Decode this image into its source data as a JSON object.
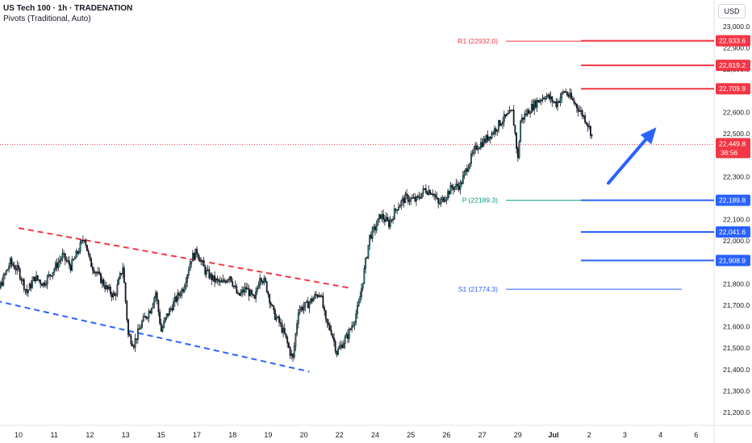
{
  "header": {
    "title": "US Tech 100 · 1h · TRADENATION",
    "subtitle": "Pivots (Traditional, Auto)"
  },
  "currency_label": "USD",
  "chart_data": {
    "type": "candlestick",
    "ylim": [
      21150,
      23100
    ],
    "y_ticks": [
      "23,000.0",
      "22,900.0",
      "22,800.0",
      "22,700.0",
      "22,600.0",
      "22,500.0",
      "22,400.0",
      "22,300.0",
      "22,200.0",
      "22,100.0",
      "22,000.0",
      "21,900.0",
      "21,800.0",
      "21,700.0",
      "21,600.0",
      "21,500.0",
      "21,400.0",
      "21,300.0",
      "21,200.0"
    ],
    "y_tick_values": [
      23000,
      22900,
      22800,
      22700,
      22600,
      22500,
      22400,
      22300,
      22200,
      22100,
      22000,
      21900,
      21800,
      21700,
      21600,
      21500,
      21400,
      21300,
      21200
    ],
    "x_ticks": [
      "10",
      "11",
      "12",
      "13",
      "15",
      "17",
      "18",
      "19",
      "20",
      "22",
      "24",
      "25",
      "26",
      "27",
      "29",
      "Jul",
      "2",
      "3",
      "4",
      "6"
    ],
    "x_tick_bold": [
      "Jul"
    ],
    "x_tick_index": [
      0,
      26,
      52,
      78,
      104,
      130,
      156,
      182,
      208,
      234,
      260,
      286,
      312,
      338,
      364,
      390,
      416,
      442,
      468,
      494
    ],
    "last_price": "22,449.8",
    "last_price_value": 22449.8,
    "countdown": "36:56",
    "pivot_levels": [
      {
        "label": "R1 (22932.0)",
        "value": 22932.0,
        "color": "#f23645"
      },
      {
        "label": "P (22189.3)",
        "value": 22189.3,
        "color": "#089981"
      },
      {
        "label": "S1 (21774.3)",
        "value": 21774.3,
        "color": "#2962ff"
      }
    ],
    "horizontal_levels": [
      {
        "label": "22,933.6",
        "value": 22933.6,
        "color": "#f23645"
      },
      {
        "label": "22,819.2",
        "value": 22819.2,
        "color": "#f23645"
      },
      {
        "label": "22,709.9",
        "value": 22709.9,
        "color": "#f23645"
      },
      {
        "label": "22,189.8",
        "value": 22189.8,
        "color": "#2962ff"
      },
      {
        "label": "22,041.6",
        "value": 22041.6,
        "color": "#2962ff"
      },
      {
        "label": "21,908.9",
        "value": 21908.9,
        "color": "#2962ff"
      }
    ],
    "channel_lines": [
      {
        "from": [
          0,
          22060
        ],
        "to": [
          242,
          21780
        ],
        "color": "#f23645"
      },
      {
        "from": [
          -30,
          21740
        ],
        "to": [
          212,
          21390
        ],
        "color": "#2962ff"
      }
    ],
    "forecast_arrow": {
      "from": [
        430,
        22270
      ],
      "to": [
        465,
        22530
      ],
      "color": "#2962ff"
    },
    "close_anchors": [
      [
        -26,
        21720
      ],
      [
        -20,
        21810
      ],
      [
        -14,
        21780
      ],
      [
        -6,
        21900
      ],
      [
        0,
        21860
      ],
      [
        6,
        21760
      ],
      [
        12,
        21830
      ],
      [
        18,
        21800
      ],
      [
        26,
        21870
      ],
      [
        32,
        21930
      ],
      [
        38,
        21880
      ],
      [
        44,
        21960
      ],
      [
        48,
        22020
      ],
      [
        52,
        21900
      ],
      [
        58,
        21840
      ],
      [
        64,
        21780
      ],
      [
        70,
        21740
      ],
      [
        76,
        21880
      ],
      [
        80,
        21560
      ],
      [
        84,
        21520
      ],
      [
        90,
        21620
      ],
      [
        96,
        21680
      ],
      [
        100,
        21760
      ],
      [
        104,
        21580
      ],
      [
        108,
        21650
      ],
      [
        114,
        21720
      ],
      [
        120,
        21780
      ],
      [
        126,
        21920
      ],
      [
        130,
        21950
      ],
      [
        136,
        21860
      ],
      [
        142,
        21820
      ],
      [
        148,
        21800
      ],
      [
        154,
        21840
      ],
      [
        160,
        21740
      ],
      [
        166,
        21780
      ],
      [
        172,
        21720
      ],
      [
        176,
        21840
      ],
      [
        180,
        21800
      ],
      [
        186,
        21660
      ],
      [
        190,
        21620
      ],
      [
        194,
        21560
      ],
      [
        198,
        21480
      ],
      [
        200,
        21450
      ],
      [
        204,
        21680
      ],
      [
        210,
        21700
      ],
      [
        216,
        21740
      ],
      [
        220,
        21760
      ],
      [
        224,
        21620
      ],
      [
        228,
        21580
      ],
      [
        232,
        21480
      ],
      [
        236,
        21520
      ],
      [
        240,
        21560
      ],
      [
        244,
        21620
      ],
      [
        248,
        21700
      ],
      [
        252,
        21860
      ],
      [
        256,
        22020
      ],
      [
        260,
        22060
      ],
      [
        264,
        22120
      ],
      [
        270,
        22080
      ],
      [
        276,
        22160
      ],
      [
        282,
        22200
      ],
      [
        290,
        22190
      ],
      [
        296,
        22240
      ],
      [
        302,
        22230
      ],
      [
        306,
        22170
      ],
      [
        310,
        22200
      ],
      [
        316,
        22250
      ],
      [
        322,
        22260
      ],
      [
        328,
        22360
      ],
      [
        334,
        22440
      ],
      [
        340,
        22470
      ],
      [
        346,
        22510
      ],
      [
        352,
        22560
      ],
      [
        356,
        22580
      ],
      [
        360,
        22600
      ],
      [
        362,
        22500
      ],
      [
        364,
        22380
      ],
      [
        366,
        22560
      ],
      [
        372,
        22610
      ],
      [
        378,
        22650
      ],
      [
        384,
        22680
      ],
      [
        388,
        22660
      ],
      [
        392,
        22640
      ],
      [
        398,
        22700
      ],
      [
        402,
        22670
      ],
      [
        408,
        22620
      ],
      [
        414,
        22560
      ],
      [
        420,
        22460
      ],
      [
        424,
        22440
      ],
      [
        428,
        22500
      ],
      [
        434,
        22480
      ],
      [
        440,
        22530
      ],
      [
        444,
        22520
      ],
      [
        448,
        22490
      ],
      [
        452,
        22470
      ],
      [
        456,
        22450
      ]
    ]
  }
}
